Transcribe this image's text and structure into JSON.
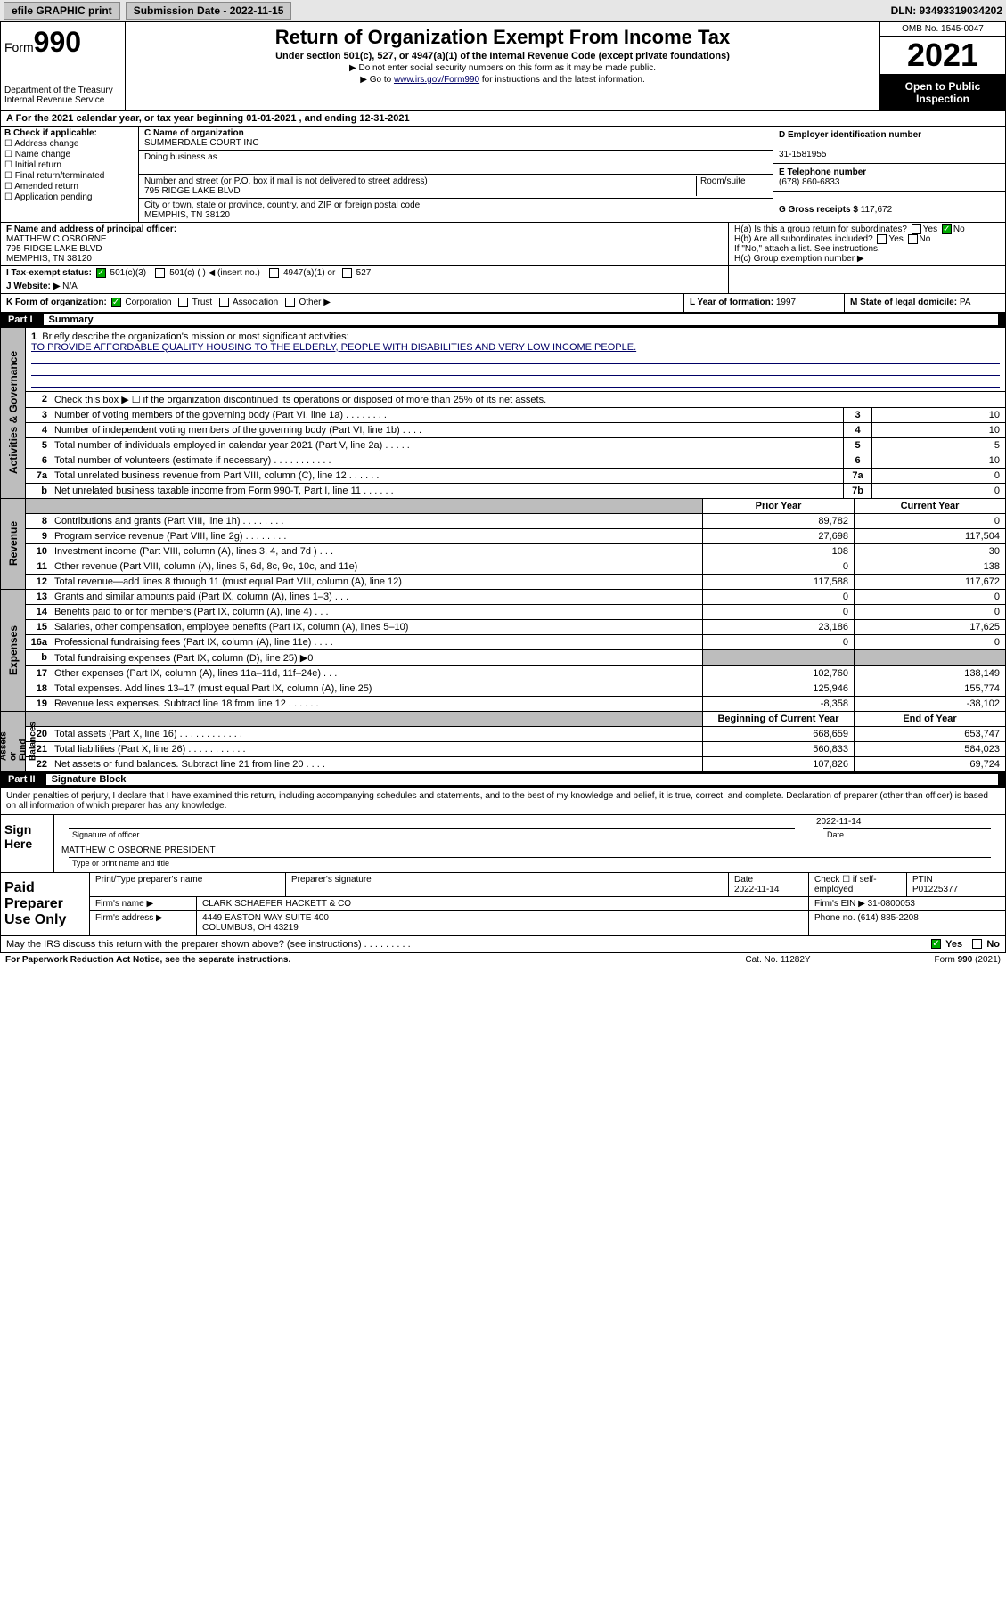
{
  "topbar": {
    "efile": "efile GRAPHIC print",
    "subdate_label": "Submission Date - 2022-11-15",
    "dln": "DLN: 93493319034202"
  },
  "header": {
    "form_prefix": "Form",
    "form_num": "990",
    "dept": "Department of the Treasury\nInternal Revenue Service",
    "title": "Return of Organization Exempt From Income Tax",
    "sub": "Under section 501(c), 527, or 4947(a)(1) of the Internal Revenue Code (except private foundations)",
    "note1": "▶ Do not enter social security numbers on this form as it may be made public.",
    "note2_pre": "▶ Go to ",
    "note2_link": "www.irs.gov/Form990",
    "note2_post": " for instructions and the latest information.",
    "omb": "OMB No. 1545-0047",
    "year": "2021",
    "open": "Open to Public Inspection"
  },
  "rowA": "A For the 2021 calendar year, or tax year beginning 01-01-2021   , and ending 12-31-2021",
  "secB": {
    "hd": "B Check if applicable:",
    "items": [
      "Address change",
      "Name change",
      "Initial return",
      "Final return/terminated",
      "Amended return",
      "Application pending"
    ]
  },
  "secC": {
    "name_lbl": "C Name of organization",
    "name": "SUMMERDALE COURT INC",
    "dba_lbl": "Doing business as",
    "dba": "",
    "addr_lbl": "Number and street (or P.O. box if mail is not delivered to street address)",
    "room_lbl": "Room/suite",
    "addr": "795 RIDGE LAKE BLVD",
    "city_lbl": "City or town, state or province, country, and ZIP or foreign postal code",
    "city": "MEMPHIS, TN  38120"
  },
  "secD": {
    "lbl": "D Employer identification number",
    "val": "31-1581955"
  },
  "secE": {
    "lbl": "E Telephone number",
    "val": "(678) 860-6833"
  },
  "secG": {
    "lbl": "G Gross receipts $",
    "val": "117,672"
  },
  "secF": {
    "lbl": "F Name and address of principal officer:",
    "name": "MATTHEW C OSBORNE",
    "addr1": "795 RIDGE LAKE BLVD",
    "addr2": "MEMPHIS, TN  38120"
  },
  "secH": {
    "a": "H(a) Is this a group return for subordinates?",
    "a_yes": "Yes",
    "a_no": "No",
    "b": "H(b) Are all subordinates included?",
    "b_yes": "Yes",
    "b_no": "No",
    "b_note": "If \"No,\" attach a list. See instructions.",
    "c": "H(c) Group exemption number ▶"
  },
  "secI": {
    "lbl": "I   Tax-exempt status:",
    "opt1": "501(c)(3)",
    "opt2": "501(c) (  ) ◀ (insert no.)",
    "opt3": "4947(a)(1) or",
    "opt4": "527"
  },
  "secJ": {
    "lbl": "J   Website: ▶",
    "val": "N/A"
  },
  "secK": {
    "lbl": "K Form of organization:",
    "opts": [
      "Corporation",
      "Trust",
      "Association",
      "Other ▶"
    ]
  },
  "secL": {
    "lbl": "L Year of formation:",
    "val": "1997"
  },
  "secM": {
    "lbl": "M State of legal domicile:",
    "val": "PA"
  },
  "part1": {
    "num": "Part I",
    "title": "Summary"
  },
  "summary": {
    "l1_lbl": "Briefly describe the organization's mission or most significant activities:",
    "l1_text": "TO PROVIDE AFFORDABLE QUALITY HOUSING TO THE ELDERLY, PEOPLE WITH DISABILITIES AND VERY LOW INCOME PEOPLE.",
    "l2": "Check this box ▶ ☐ if the organization discontinued its operations or disposed of more than 25% of its net assets.",
    "rows_a": [
      {
        "n": "3",
        "d": "Number of voting members of the governing body (Part VI, line 1a)  .   .   .   .   .   .   .   .",
        "bn": "3",
        "v": "10"
      },
      {
        "n": "4",
        "d": "Number of independent voting members of the governing body (Part VI, line 1b)  .   .   .   .",
        "bn": "4",
        "v": "10"
      },
      {
        "n": "5",
        "d": "Total number of individuals employed in calendar year 2021 (Part V, line 2a)  .   .   .   .   .",
        "bn": "5",
        "v": "5"
      },
      {
        "n": "6",
        "d": "Total number of volunteers (estimate if necessary)  .   .   .   .   .   .   .   .   .   .   .",
        "bn": "6",
        "v": "10"
      },
      {
        "n": "7a",
        "d": "Total unrelated business revenue from Part VIII, column (C), line 12  .   .   .   .   .   .",
        "bn": "7a",
        "v": "0"
      },
      {
        "n": "b",
        "d": "Net unrelated business taxable income from Form 990-T, Part I, line 11  .   .   .   .   .   .",
        "bn": "7b",
        "v": "0"
      }
    ],
    "col_prior": "Prior Year",
    "col_curr": "Current Year",
    "rows_r": [
      {
        "n": "8",
        "d": "Contributions and grants (Part VIII, line 1h)  .   .   .   .   .   .   .   .",
        "p": "89,782",
        "c": "0"
      },
      {
        "n": "9",
        "d": "Program service revenue (Part VIII, line 2g)  .   .   .   .   .   .   .   .",
        "p": "27,698",
        "c": "117,504"
      },
      {
        "n": "10",
        "d": "Investment income (Part VIII, column (A), lines 3, 4, and 7d )  .   .   .",
        "p": "108",
        "c": "30"
      },
      {
        "n": "11",
        "d": "Other revenue (Part VIII, column (A), lines 5, 6d, 8c, 9c, 10c, and 11e)",
        "p": "0",
        "c": "138"
      },
      {
        "n": "12",
        "d": "Total revenue—add lines 8 through 11 (must equal Part VIII, column (A), line 12)",
        "p": "117,588",
        "c": "117,672"
      }
    ],
    "rows_e": [
      {
        "n": "13",
        "d": "Grants and similar amounts paid (Part IX, column (A), lines 1–3)  .   .   .",
        "p": "0",
        "c": "0"
      },
      {
        "n": "14",
        "d": "Benefits paid to or for members (Part IX, column (A), line 4)  .   .   .",
        "p": "0",
        "c": "0"
      },
      {
        "n": "15",
        "d": "Salaries, other compensation, employee benefits (Part IX, column (A), lines 5–10)",
        "p": "23,186",
        "c": "17,625"
      },
      {
        "n": "16a",
        "d": "Professional fundraising fees (Part IX, column (A), line 11e)  .   .   .   .",
        "p": "0",
        "c": "0"
      },
      {
        "n": "b",
        "d": "Total fundraising expenses (Part IX, column (D), line 25) ▶0",
        "p": "",
        "c": "",
        "shaded": true
      },
      {
        "n": "17",
        "d": "Other expenses (Part IX, column (A), lines 11a–11d, 11f–24e)  .   .   .",
        "p": "102,760",
        "c": "138,149"
      },
      {
        "n": "18",
        "d": "Total expenses. Add lines 13–17 (must equal Part IX, column (A), line 25)",
        "p": "125,946",
        "c": "155,774"
      },
      {
        "n": "19",
        "d": "Revenue less expenses. Subtract line 18 from line 12  .   .   .   .   .   .",
        "p": "-8,358",
        "c": "-38,102"
      }
    ],
    "col_beg": "Beginning of Current Year",
    "col_end": "End of Year",
    "rows_n": [
      {
        "n": "20",
        "d": "Total assets (Part X, line 16)  .   .   .   .   .   .   .   .   .   .   .   .",
        "p": "668,659",
        "c": "653,747"
      },
      {
        "n": "21",
        "d": "Total liabilities (Part X, line 26)  .   .   .   .   .   .   .   .   .   .   .",
        "p": "560,833",
        "c": "584,023"
      },
      {
        "n": "22",
        "d": "Net assets or fund balances. Subtract line 21 from line 20  .   .   .   .",
        "p": "107,826",
        "c": "69,724"
      }
    ]
  },
  "sidelabels": {
    "ag": "Activities & Governance",
    "rev": "Revenue",
    "exp": "Expenses",
    "na": "Net Assets or\nFund Balances"
  },
  "part2": {
    "num": "Part II",
    "title": "Signature Block"
  },
  "sig": {
    "decl": "Under penalties of perjury, I declare that I have examined this return, including accompanying schedules and statements, and to the best of my knowledge and belief, it is true, correct, and complete. Declaration of preparer (other than officer) is based on all information of which preparer has any knowledge.",
    "here": "Sign Here",
    "sig_lbl": "Signature of officer",
    "date_lbl": "Date",
    "date": "2022-11-14",
    "name": "MATTHEW C OSBORNE  PRESIDENT",
    "name_lbl": "Type or print name and title"
  },
  "paid": {
    "lab": "Paid Preparer Use Only",
    "h1": "Print/Type preparer's name",
    "h2": "Preparer's signature",
    "h3": "Date",
    "h3v": "2022-11-14",
    "h4": "Check ☐ if self-employed",
    "h5": "PTIN",
    "h5v": "P01225377",
    "firm_lbl": "Firm's name    ▶",
    "firm": "CLARK SCHAEFER HACKETT & CO",
    "ein_lbl": "Firm's EIN ▶",
    "ein": "31-0800053",
    "addr_lbl": "Firm's address ▶",
    "addr": "4449 EASTON WAY SUITE 400",
    "addr2": "COLUMBUS, OH  43219",
    "ph_lbl": "Phone no.",
    "ph": "(614) 885-2208"
  },
  "discuss": {
    "q": "May the IRS discuss this return with the preparer shown above? (see instructions)  .   .   .   .   .   .   .   .   .",
    "yes": "Yes",
    "no": "No"
  },
  "foot": {
    "l": "For Paperwork Reduction Act Notice, see the separate instructions.",
    "m": "Cat. No. 11282Y",
    "r": "Form 990 (2021)"
  },
  "colors": {
    "link": "#003366",
    "shade": "#bdbdbd",
    "green": "#0a9020"
  }
}
